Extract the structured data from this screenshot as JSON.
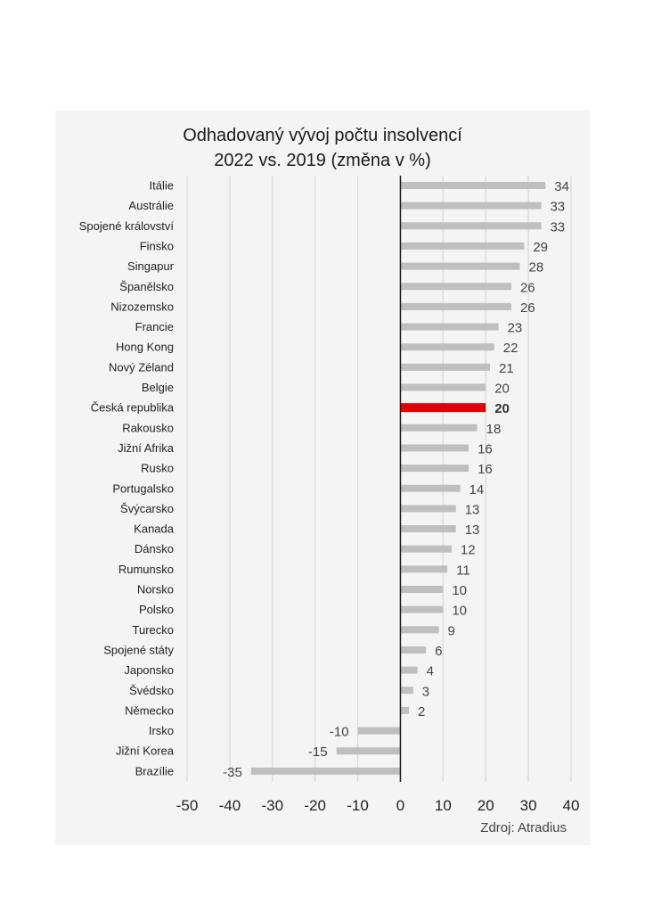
{
  "chart_data": {
    "type": "bar",
    "orientation": "horizontal",
    "title": "Odhadovaný vývoj počtu insolvencí",
    "subtitle": "2022 vs. 2019 (změna v %)",
    "xlabel": "",
    "ylabel": "",
    "xlim": [
      -50,
      40
    ],
    "xticks": [
      "-50",
      "-40",
      "-30",
      "-20",
      "-10",
      "0",
      "10",
      "20",
      "30",
      "40"
    ],
    "grid": true,
    "highlight_category": "Česká republika",
    "colors": {
      "default_bar": "#bfbfbf",
      "highlight_bar": "#e00000",
      "zero_axis": "#1a1a1a",
      "grid": "#d9d9d9",
      "panel": "#f4f4f4"
    },
    "categories": [
      "Itálie",
      "Austrálie",
      "Spojené království",
      "Finsko",
      "Singapur",
      "Španělsko",
      "Nizozemsko",
      "Francie",
      "Hong Kong",
      "Nový Zéland",
      "Belgie",
      "Česká republika",
      "Rakousko",
      "Jižní Afrika",
      "Rusko",
      "Portugalsko",
      "Švýcarsko",
      "Kanada",
      "Dánsko",
      "Rumunsko",
      "Norsko",
      "Polsko",
      "Turecko",
      "Spojené státy",
      "Japonsko",
      "Švédsko",
      "Německo",
      "Irsko",
      "Jižní Korea",
      "Brazílie"
    ],
    "values": [
      34,
      33,
      33,
      29,
      28,
      26,
      26,
      23,
      22,
      21,
      20,
      20,
      18,
      16,
      16,
      14,
      13,
      13,
      12,
      11,
      10,
      10,
      9,
      6,
      4,
      3,
      2,
      -10,
      -15,
      -35
    ]
  },
  "source": "Zdroj: Atradius"
}
